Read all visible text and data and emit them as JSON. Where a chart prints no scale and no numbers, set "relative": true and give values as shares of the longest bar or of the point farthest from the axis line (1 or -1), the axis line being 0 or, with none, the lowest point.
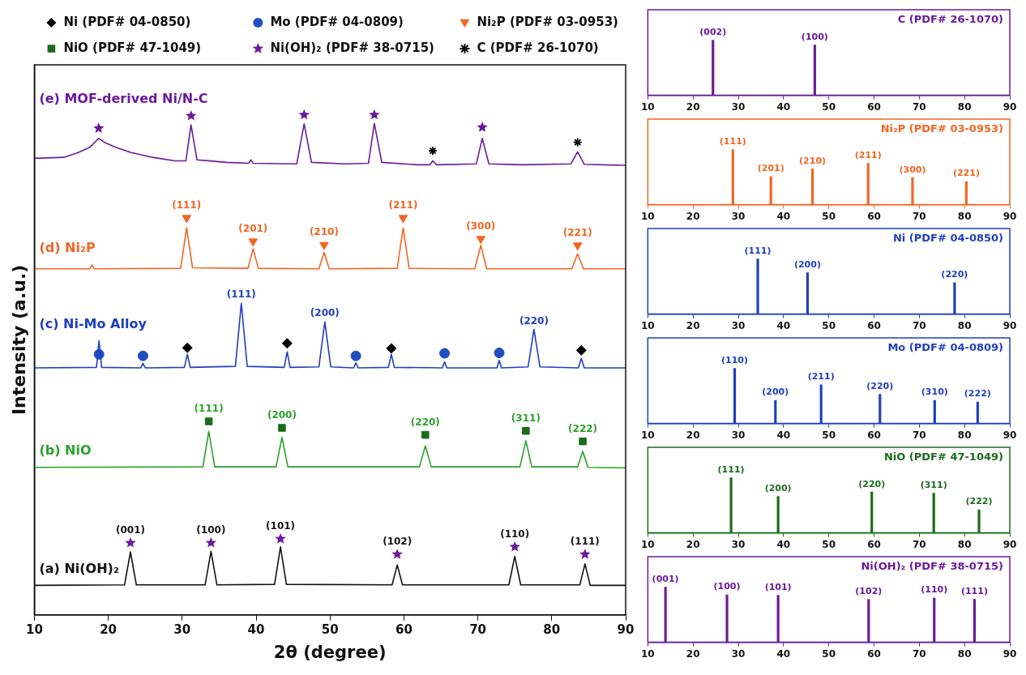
{
  "chart_data": [
    {
      "type": "line",
      "xlabel": "2θ (degree)",
      "ylabel": "Intensity (a.u.)",
      "xlim": [
        10,
        90
      ],
      "xticks": [
        10,
        20,
        30,
        40,
        50,
        60,
        70,
        80,
        90
      ],
      "relative": true,
      "legend": "top left",
      "series": [
        {
          "type": "line",
          "name": "(e) MOF-derived Ni/N-C",
          "color": "#6a1b9a",
          "x": [
            10,
            14,
            16,
            17.5,
            18.7,
            19.5,
            21,
            23,
            26,
            29,
            30.5,
            31.2,
            32,
            36,
            39,
            39.3,
            39.6,
            45.5,
            46.5,
            47.5,
            52,
            55.2,
            56.0,
            57,
            62,
            63.5,
            63.9,
            64.4,
            69.8,
            70.6,
            71.5,
            76,
            82.6,
            83.5,
            84.4,
            90
          ],
          "values": [
            0.913,
            0.915,
            0.925,
            0.935,
            0.953,
            0.945,
            0.935,
            0.925,
            0.915,
            0.908,
            0.908,
            0.98,
            0.91,
            0.905,
            0.903,
            0.91,
            0.903,
            0.902,
            0.982,
            0.905,
            0.902,
            0.903,
            0.983,
            0.905,
            0.9,
            0.9,
            0.908,
            0.9,
            0.902,
            0.953,
            0.902,
            0.9,
            0.902,
            0.926,
            0.901,
            0.899
          ]
        },
        {
          "type": "line",
          "name": "(d) Ni₂P",
          "color": "#f26522",
          "x": [
            10,
            17.5,
            17.8,
            18.1,
            29.8,
            30.6,
            31.4,
            38.9,
            39.6,
            40.3,
            48.5,
            49.2,
            49.9,
            59.1,
            59.9,
            60.7,
            69.6,
            70.4,
            71.2,
            82.7,
            83.5,
            84.3,
            90
          ],
          "values": [
            0.692,
            0.692,
            0.7,
            0.692,
            0.693,
            0.774,
            0.694,
            0.693,
            0.732,
            0.693,
            0.692,
            0.725,
            0.692,
            0.693,
            0.774,
            0.693,
            0.692,
            0.739,
            0.692,
            0.692,
            0.722,
            0.692,
            0.692
          ]
        },
        {
          "type": "line",
          "name": "(c) Ni-Mo Alloy",
          "color": "#1f3fbf",
          "x": [
            10,
            18.4,
            18.75,
            19.1,
            24.4,
            24.7,
            25.0,
            30.3,
            30.7,
            31.1,
            37.2,
            38.0,
            38.8,
            43.8,
            44.2,
            44.6,
            48.5,
            49.3,
            50.1,
            53.2,
            53.5,
            53.8,
            57.9,
            58.3,
            58.7,
            65.2,
            65.5,
            65.8,
            72.6,
            72.9,
            73.2,
            76.8,
            77.6,
            78.4,
            83.6,
            84.0,
            84.4,
            90
          ],
          "values": [
            0.494,
            0.495,
            0.548,
            0.495,
            0.494,
            0.503,
            0.494,
            0.495,
            0.521,
            0.495,
            0.497,
            0.623,
            0.497,
            0.495,
            0.526,
            0.495,
            0.496,
            0.586,
            0.496,
            0.494,
            0.504,
            0.494,
            0.495,
            0.521,
            0.495,
            0.494,
            0.506,
            0.494,
            0.494,
            0.509,
            0.494,
            0.496,
            0.571,
            0.496,
            0.494,
            0.513,
            0.494,
            0.494
          ]
        },
        {
          "type": "line",
          "name": "(b) NiO",
          "color": "#2ca02c",
          "x": [
            10,
            32.8,
            33.6,
            34.4,
            42.7,
            43.5,
            44.3,
            62.1,
            62.9,
            63.7,
            75.7,
            76.5,
            77.3,
            83.5,
            84.2,
            84.9,
            90
          ],
          "values": [
            0.295,
            0.296,
            0.367,
            0.296,
            0.296,
            0.355,
            0.296,
            0.296,
            0.338,
            0.296,
            0.296,
            0.348,
            0.296,
            0.296,
            0.327,
            0.295,
            0.294
          ]
        },
        {
          "type": "line",
          "name": "(a) Ni(OH)₂",
          "color": "#111111",
          "x": [
            10,
            22.2,
            23.0,
            23.8,
            33.1,
            33.9,
            34.7,
            42.5,
            43.3,
            44.1,
            58.4,
            59.1,
            59.8,
            74.2,
            75.0,
            75.8,
            83.8,
            84.5,
            85.2,
            90
          ],
          "values": [
            0.059,
            0.06,
            0.126,
            0.06,
            0.06,
            0.127,
            0.06,
            0.061,
            0.136,
            0.061,
            0.06,
            0.1,
            0.06,
            0.06,
            0.117,
            0.06,
            0.06,
            0.102,
            0.059,
            0.059
          ]
        },
        {
          "type": "scatter",
          "marker": "diamond",
          "name": "Ni (PDF# 04-0850)",
          "color": "#000000",
          "x": [
            30.7,
            44.2,
            58.3,
            84.0
          ],
          "values": [
            0.534,
            0.543,
            0.533,
            0.529
          ]
        },
        {
          "type": "scatter",
          "marker": "circle",
          "name": "Mo (PDF# 04-0809)",
          "color": "#1f4fbf",
          "x": [
            18.75,
            24.7,
            53.5,
            65.5,
            72.9
          ],
          "values": [
            0.521,
            0.518,
            0.518,
            0.523,
            0.524
          ]
        },
        {
          "type": "scatter",
          "marker": "triangle",
          "name": "Ni₂P (PDF# 03-0953)",
          "color": "#f26522",
          "x": [
            30.6,
            39.6,
            49.2,
            59.9,
            70.4,
            83.5
          ],
          "values": [
            0.794,
            0.747,
            0.74,
            0.794,
            0.752,
            0.739
          ]
        },
        {
          "type": "scatter",
          "marker": "square",
          "name": "NiO (PDF# 47-1049)",
          "color": "#1b6b1b",
          "x": [
            33.6,
            43.5,
            62.9,
            76.5,
            84.2
          ],
          "values": [
            0.387,
            0.374,
            0.36,
            0.368,
            0.347
          ]
        },
        {
          "type": "scatter",
          "marker": "star",
          "name": "Ni(OH)₂ (PDF# 38-0715)",
          "color": "#6a1b9a",
          "x": [
            23.0,
            33.9,
            43.3,
            59.1,
            75.0,
            84.5,
            18.7,
            31.2,
            46.5,
            56.0,
            70.6
          ],
          "values": [
            0.144,
            0.144,
            0.152,
            0.121,
            0.136,
            0.121,
            0.973,
            0.998,
            1.0,
            1.0,
            0.975
          ]
        },
        {
          "type": "scatter",
          "marker": "cross",
          "name": "C (PDF# 26-1070)",
          "color": "#000000",
          "x": [
            63.9,
            83.5
          ],
          "values": [
            0.928,
            0.945
          ]
        }
      ],
      "annotations": [
        {
          "text": "(111)",
          "x": 30.6,
          "y": 0.774
        },
        {
          "text": "(201)",
          "x": 39.6,
          "y": 0.732
        },
        {
          "text": "(210)",
          "x": 49.2,
          "y": 0.725
        },
        {
          "text": "(211)",
          "x": 59.9,
          "y": 0.774
        },
        {
          "text": "(300)",
          "x": 70.4,
          "y": 0.739
        },
        {
          "text": "(221)",
          "x": 83.5,
          "y": 0.722
        },
        {
          "text": "(111)",
          "x": 38.0,
          "y": 0.623
        },
        {
          "text": "(200)",
          "x": 49.3,
          "y": 0.586
        },
        {
          "text": "(220)",
          "x": 77.6,
          "y": 0.571
        },
        {
          "text": "(111)",
          "x": 33.6,
          "y": 0.367
        },
        {
          "text": "(200)",
          "x": 43.5,
          "y": 0.355
        },
        {
          "text": "(220)",
          "x": 62.9,
          "y": 0.338
        },
        {
          "text": "(311)",
          "x": 76.5,
          "y": 0.348
        },
        {
          "text": "(222)",
          "x": 84.2,
          "y": 0.327
        },
        {
          "text": "(001)",
          "x": 23.0,
          "y": 0.126
        },
        {
          "text": "(100)",
          "x": 33.9,
          "y": 0.127
        },
        {
          "text": "(101)",
          "x": 43.3,
          "y": 0.136
        },
        {
          "text": "(102)",
          "x": 59.1,
          "y": 0.1
        },
        {
          "text": "(110)",
          "x": 75.0,
          "y": 0.117
        },
        {
          "text": "(111)",
          "x": 84.5,
          "y": 0.102
        }
      ]
    },
    {
      "type": "bar",
      "title": "C (PDF# 26-1070)",
      "relative": true,
      "xlim": [
        10,
        90
      ],
      "xticks": [
        10,
        20,
        30,
        40,
        50,
        60,
        70,
        80,
        90
      ],
      "color": "#6a1b9a",
      "x": [
        24.4,
        46.9
      ],
      "values": [
        1,
        0.91
      ],
      "annotations": [
        {
          "text": "(002)",
          "x": 24.4,
          "y": 1
        },
        {
          "text": "(100)",
          "x": 46.9,
          "y": 0.91
        }
      ]
    },
    {
      "type": "bar",
      "title": "Ni₂P (PDF# 03-0953)",
      "relative": true,
      "xlim": [
        10,
        90
      ],
      "xticks": [
        10,
        20,
        30,
        40,
        50,
        60,
        70,
        80,
        90
      ],
      "color": "#f26522",
      "x": [
        28.8,
        37.2,
        46.4,
        58.7,
        68.5,
        80.4
      ],
      "values": [
        1,
        0.51,
        0.65,
        0.75,
        0.49,
        0.42
      ],
      "annotations": [
        {
          "text": "(111)",
          "x": 28.8,
          "y": 1
        },
        {
          "text": "(201)",
          "x": 37.2,
          "y": 0.51
        },
        {
          "text": "(210)",
          "x": 46.4,
          "y": 0.65
        },
        {
          "text": "(211)",
          "x": 58.7,
          "y": 0.75
        },
        {
          "text": "(300)",
          "x": 68.5,
          "y": 0.49
        },
        {
          "text": "(221)",
          "x": 80.4,
          "y": 0.42
        }
      ]
    },
    {
      "type": "bar",
      "title": "Ni (PDF# 04-0850)",
      "relative": true,
      "xlim": [
        10,
        90
      ],
      "xticks": [
        10,
        20,
        30,
        40,
        50,
        60,
        70,
        80,
        90
      ],
      "color": "#1f3fbf",
      "x": [
        34.3,
        45.3,
        77.8
      ],
      "values": [
        1,
        0.75,
        0.57
      ],
      "annotations": [
        {
          "text": "(111)",
          "x": 34.3,
          "y": 1
        },
        {
          "text": "(200)",
          "x": 45.3,
          "y": 0.75
        },
        {
          "text": "(220)",
          "x": 77.8,
          "y": 0.57
        }
      ]
    },
    {
      "type": "bar",
      "title": "Mo (PDF# 04-0809)",
      "relative": true,
      "xlim": [
        10,
        90
      ],
      "xticks": [
        10,
        20,
        30,
        40,
        50,
        60,
        70,
        80,
        90
      ],
      "color": "#1f3fbf",
      "x": [
        29.2,
        38.2,
        48.3,
        61.3,
        73.4,
        82.9
      ],
      "values": [
        1,
        0.42,
        0.7,
        0.53,
        0.42,
        0.39
      ],
      "annotations": [
        {
          "text": "(110)",
          "x": 29.2,
          "y": 1
        },
        {
          "text": "(200)",
          "x": 38.2,
          "y": 0.42
        },
        {
          "text": "(211)",
          "x": 48.3,
          "y": 0.7
        },
        {
          "text": "(220)",
          "x": 61.3,
          "y": 0.53
        },
        {
          "text": "(310)",
          "x": 73.4,
          "y": 0.42
        },
        {
          "text": "(222)",
          "x": 82.9,
          "y": 0.39
        }
      ]
    },
    {
      "type": "bar",
      "title": "NiO (PDF# 47-1049)",
      "relative": true,
      "xlim": [
        10,
        90
      ],
      "xticks": [
        10,
        20,
        30,
        40,
        50,
        60,
        70,
        80,
        90
      ],
      "color": "#1b6b1b",
      "x": [
        28.4,
        38.8,
        59.5,
        73.2,
        83.2
      ],
      "values": [
        1,
        0.66,
        0.74,
        0.72,
        0.42
      ],
      "annotations": [
        {
          "text": "(111)",
          "x": 28.4,
          "y": 1
        },
        {
          "text": "(200)",
          "x": 38.8,
          "y": 0.66
        },
        {
          "text": "(220)",
          "x": 59.5,
          "y": 0.74
        },
        {
          "text": "(311)",
          "x": 73.2,
          "y": 0.72
        },
        {
          "text": "(222)",
          "x": 83.2,
          "y": 0.42
        }
      ]
    },
    {
      "type": "bar",
      "title": "Ni(OH)₂ (PDF# 38-0715)",
      "relative": true,
      "xlim": [
        10,
        90
      ],
      "xticks": [
        10,
        20,
        30,
        40,
        50,
        60,
        70,
        80,
        90
      ],
      "color": "#6a1b9a",
      "x": [
        13.9,
        27.5,
        38.8,
        58.8,
        73.3,
        82.2
      ],
      "values": [
        1,
        0.86,
        0.85,
        0.78,
        0.8,
        0.78
      ],
      "annotations": [
        {
          "text": "(001)",
          "x": 13.9,
          "y": 1
        },
        {
          "text": "(100)",
          "x": 27.5,
          "y": 0.86
        },
        {
          "text": "(101)",
          "x": 38.8,
          "y": 0.85
        },
        {
          "text": "(102)",
          "x": 58.8,
          "y": 0.78
        },
        {
          "text": "(110)",
          "x": 73.3,
          "y": 0.8
        },
        {
          "text": "(111)",
          "x": 82.2,
          "y": 0.78
        }
      ]
    }
  ]
}
